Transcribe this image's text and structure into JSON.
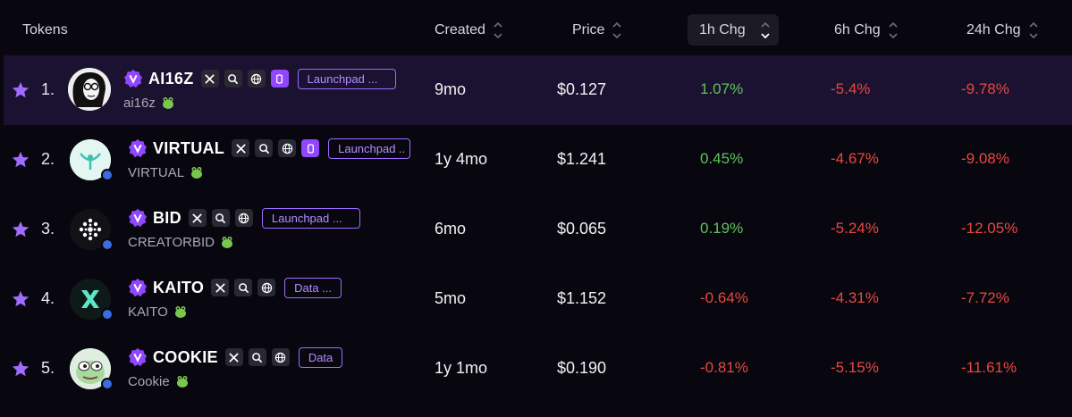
{
  "header": {
    "tokens": "Tokens",
    "created": "Created",
    "price": "Price",
    "chg1h": "1h Chg",
    "chg6h": "6h Chg",
    "chg24h": "24h Chg"
  },
  "colors": {
    "accent": "#9146ff",
    "positive": "#5fc35a",
    "negative": "#e8483f"
  },
  "rows": [
    {
      "rank": "1.",
      "name": "AI16Z",
      "symbol": "ai16z",
      "tag": "Launchpad ...",
      "created": "9mo",
      "price": "$0.127",
      "chg1h": "1.07%",
      "chg6h": "-5.4%",
      "chg24h": "-9.78%"
    },
    {
      "rank": "2.",
      "name": "VIRTUAL",
      "symbol": "VIRTUAL",
      "tag": "Launchpad ..",
      "created": "1y 4mo",
      "price": "$1.241",
      "chg1h": "0.45%",
      "chg6h": "-4.67%",
      "chg24h": "-9.08%"
    },
    {
      "rank": "3.",
      "name": "BID",
      "symbol": "CREATORBID",
      "tag": "Launchpad ...",
      "created": "6mo",
      "price": "$0.065",
      "chg1h": "0.19%",
      "chg6h": "-5.24%",
      "chg24h": "-12.05%"
    },
    {
      "rank": "4.",
      "name": "KAITO",
      "symbol": "KAITO",
      "tag": "Data ...",
      "created": "5mo",
      "price": "$1.152",
      "chg1h": "-0.64%",
      "chg6h": "-4.31%",
      "chg24h": "-7.72%"
    },
    {
      "rank": "5.",
      "name": "COOKIE",
      "symbol": "Cookie",
      "tag": "Data",
      "created": "1y 1mo",
      "price": "$0.190",
      "chg1h": "-0.81%",
      "chg6h": "-5.15%",
      "chg24h": "-11.61%"
    }
  ]
}
